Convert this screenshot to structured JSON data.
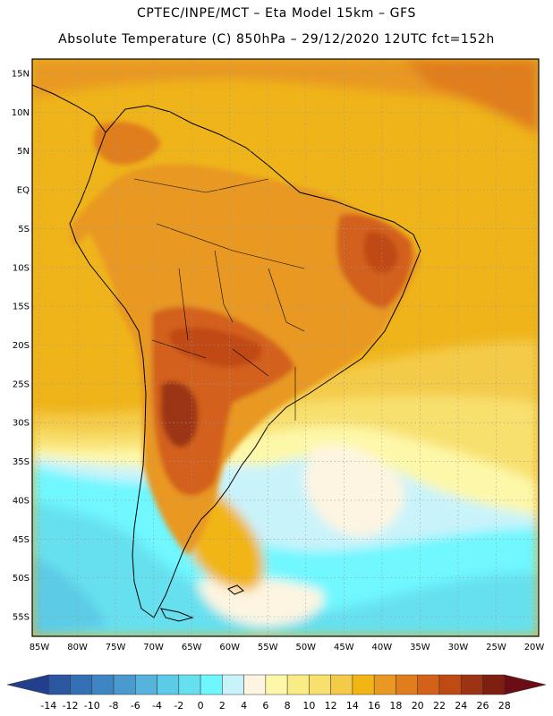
{
  "header": {
    "line1": "CPTEC/INPE/MCT –  Eta Model 15km – GFS",
    "line2": "Absolute Temperature (C) 850hPa – 29/12/2020 12UTC fct=152h"
  },
  "map": {
    "lat_labels": [
      "15N",
      "10N",
      "5N",
      "EQ",
      "5S",
      "10S",
      "15S",
      "20S",
      "25S",
      "30S",
      "35S",
      "40S",
      "45S",
      "50S",
      "55S"
    ],
    "lon_labels": [
      "85W",
      "80W",
      "75W",
      "70W",
      "65W",
      "60W",
      "55W",
      "50W",
      "45W",
      "40W",
      "35W",
      "30W",
      "25W",
      "20W"
    ]
  },
  "colorbar": {
    "labels": [
      "-14",
      "-12",
      "-10",
      "-8",
      "-6",
      "-4",
      "-2",
      "0",
      "2",
      "4",
      "6",
      "8",
      "10",
      "12",
      "14",
      "16",
      "18",
      "20",
      "22",
      "24",
      "26",
      "28"
    ],
    "colors": [
      "#233e8a",
      "#2b57a0",
      "#3570b4",
      "#3d86c2",
      "#4a9bcd",
      "#56b3dc",
      "#5ccbe6",
      "#66e0ef",
      "#6ff7ff",
      "#c9f3fb",
      "#fdf5e1",
      "#fdf8a9",
      "#faec84",
      "#f8e06e",
      "#f4cb48",
      "#f1b514",
      "#e99822",
      "#e07d1d",
      "#d3611a",
      "#c04a14",
      "#9c3414",
      "#7e1f10",
      "#6b0d14"
    ]
  }
}
